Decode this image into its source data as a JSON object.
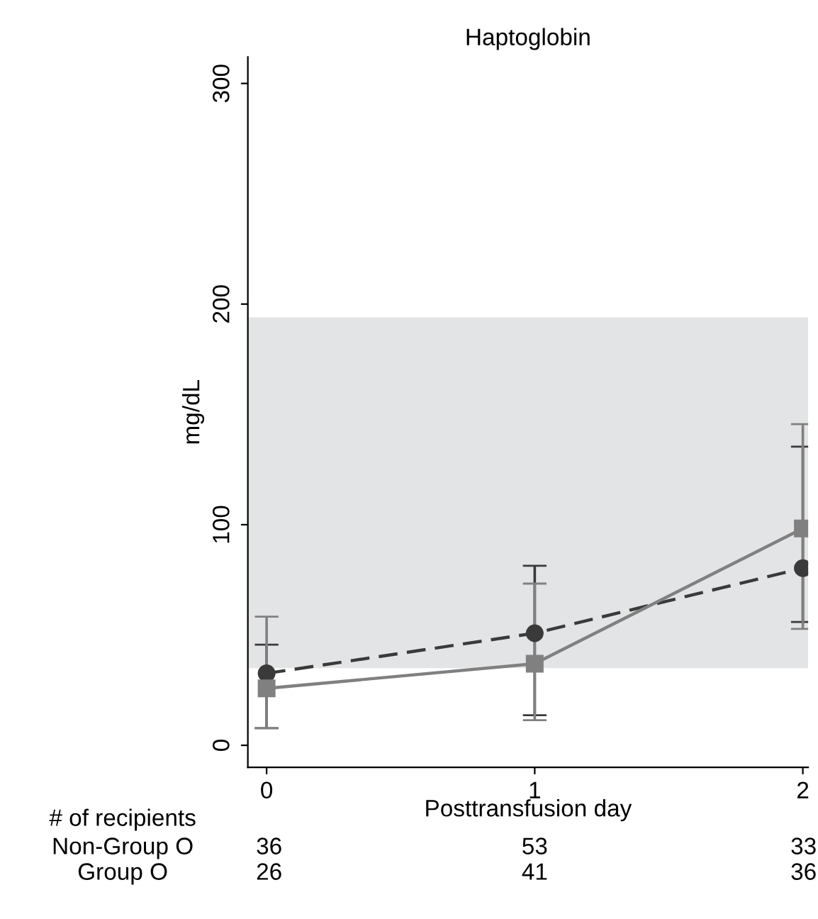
{
  "chart_data": {
    "type": "line",
    "title": "Haptoglobin",
    "xlabel": "Posttransfusion day",
    "ylabel": "mg/dL",
    "x": [
      0,
      1,
      2
    ],
    "series": [
      {
        "color": "#3a3a3a",
        "values": [
          32.6,
          50.8,
          80.3
        ],
        "marker": "circle",
        "line_style": "dashed",
        "errors": [
          [
            7.8,
            45.6
          ],
          [
            13.6,
            81.4
          ],
          [
            55.9,
            135.4
          ]
        ]
      },
      {
        "color": "#808080",
        "values": [
          25.8,
          37,
          98.3
        ],
        "marker": "square",
        "line_style": "solid",
        "errors": [
          [
            7.8,
            58.3
          ],
          [
            11.4,
            73.3
          ],
          [
            52.8,
            145.6
          ]
        ]
      }
    ],
    "bands": [
      {
        "axis": "y",
        "from": 35,
        "to": 194,
        "color": "#e3e4e6"
      }
    ],
    "xlim": [
      -0.07,
      2.02
    ],
    "xticks": [
      0,
      1,
      2
    ],
    "ylim": [
      -10,
      312
    ],
    "yticks": [
      0,
      100,
      200,
      300
    ],
    "grid": false,
    "legend": false,
    "annotations": [
      "# of recipients",
      "Non-Group O",
      "36",
      "53",
      "33",
      "Group O",
      "26",
      "41",
      "36"
    ]
  }
}
